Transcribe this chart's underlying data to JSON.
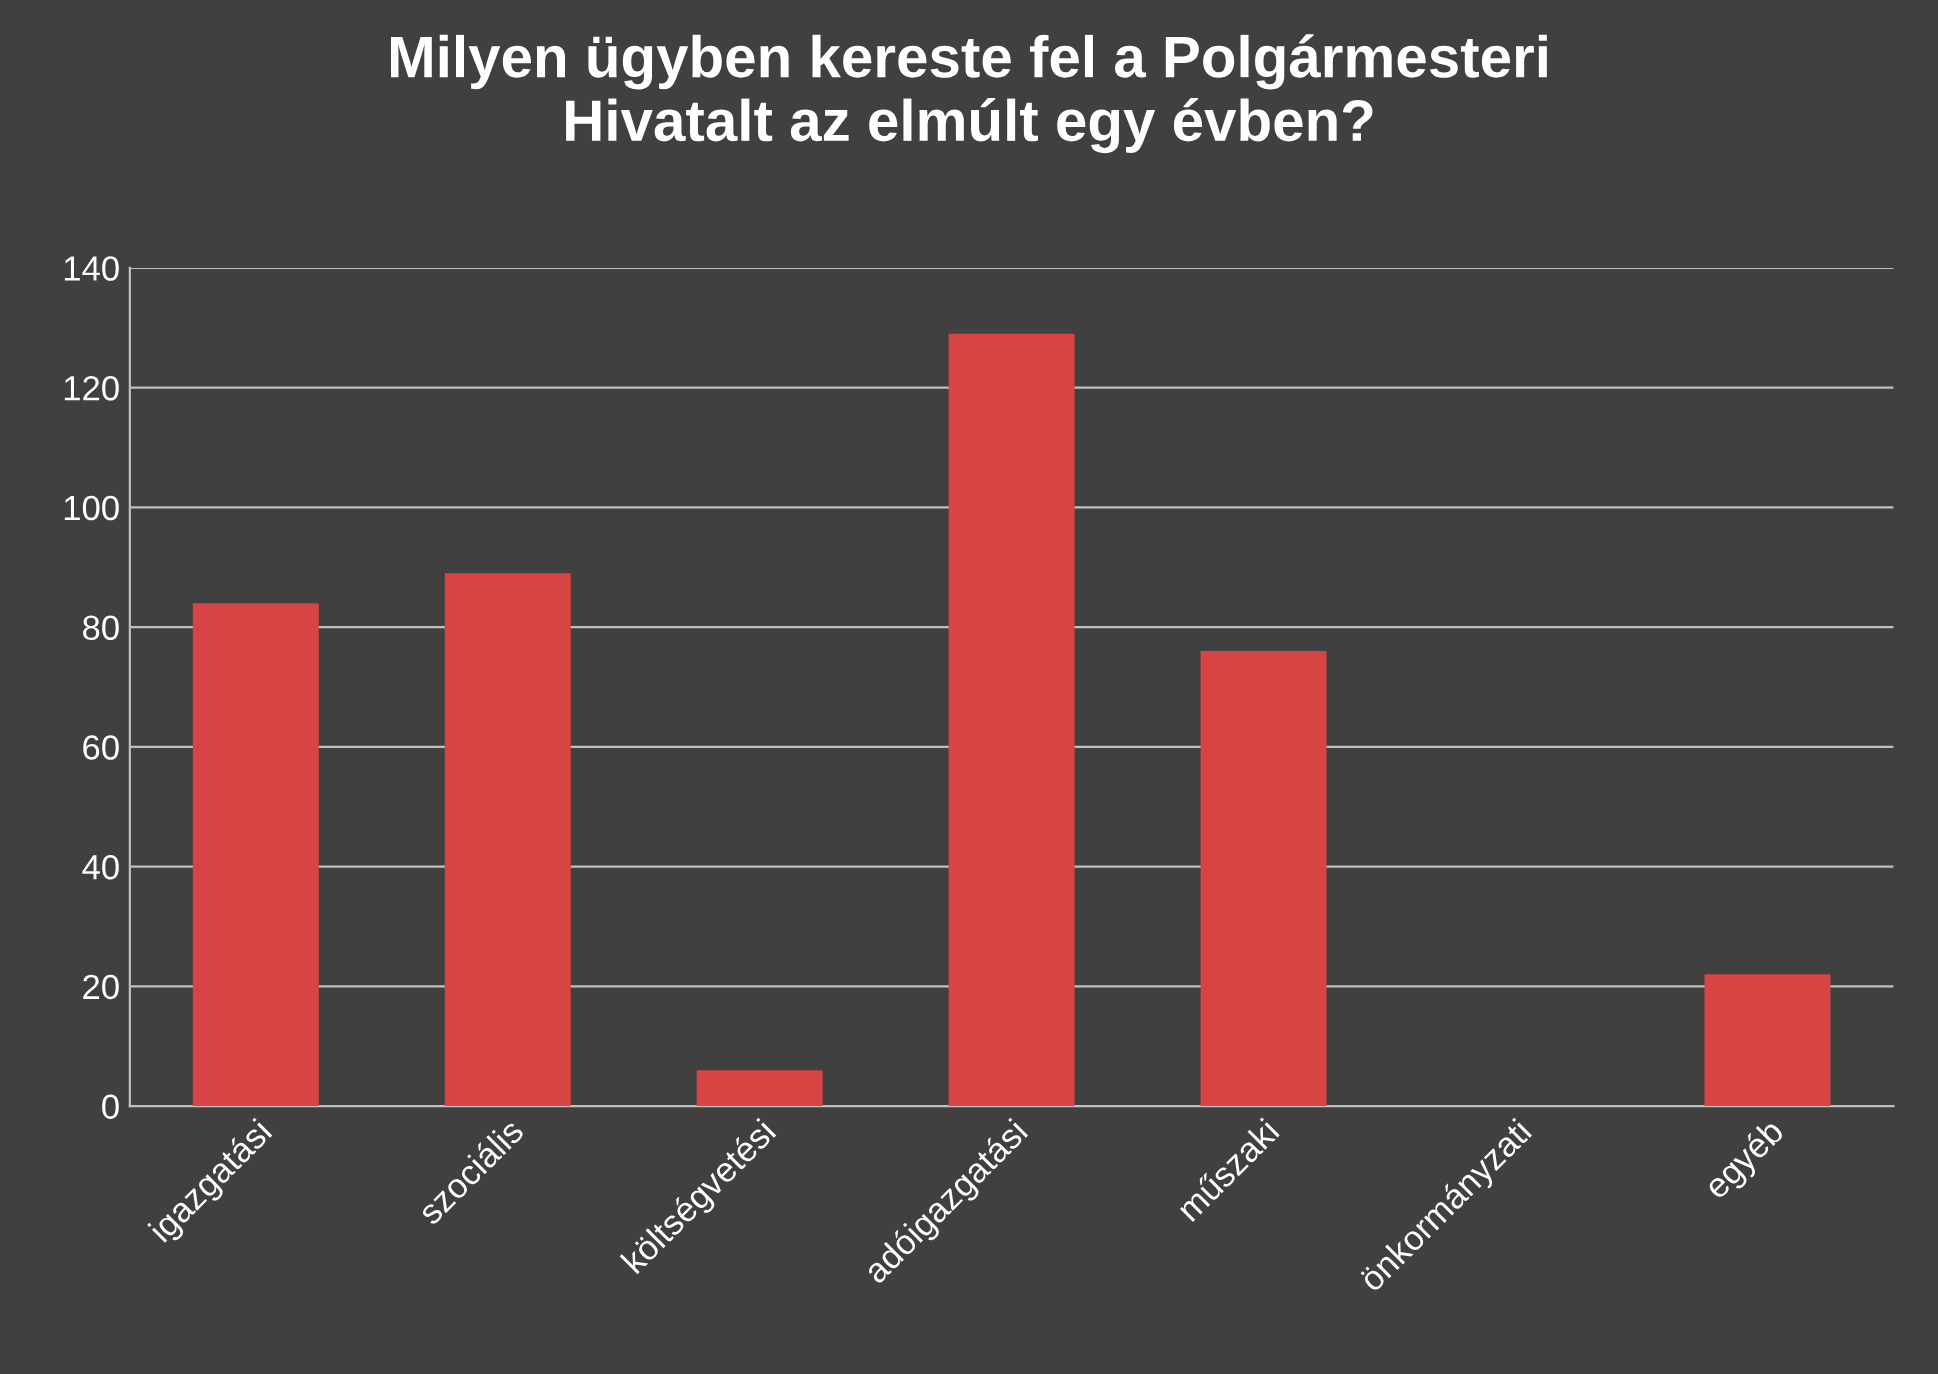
{
  "chart_data": {
    "type": "bar",
    "title": "Milyen ügyben kereste fel a Polgármesteri\nHivatalt az elmúlt egy évben?",
    "categories": [
      "igazgatási",
      "szociális",
      "költségvetési",
      "adóigazgatási",
      "műszaki",
      "önkormányzati",
      "egyéb"
    ],
    "values": [
      84,
      89,
      6,
      129,
      76,
      0,
      22
    ],
    "color": "#d84343",
    "ylim": [
      0,
      140
    ],
    "yticks": [
      0,
      20,
      40,
      60,
      80,
      100,
      120,
      140
    ],
    "grid": "y",
    "legend": false
  }
}
